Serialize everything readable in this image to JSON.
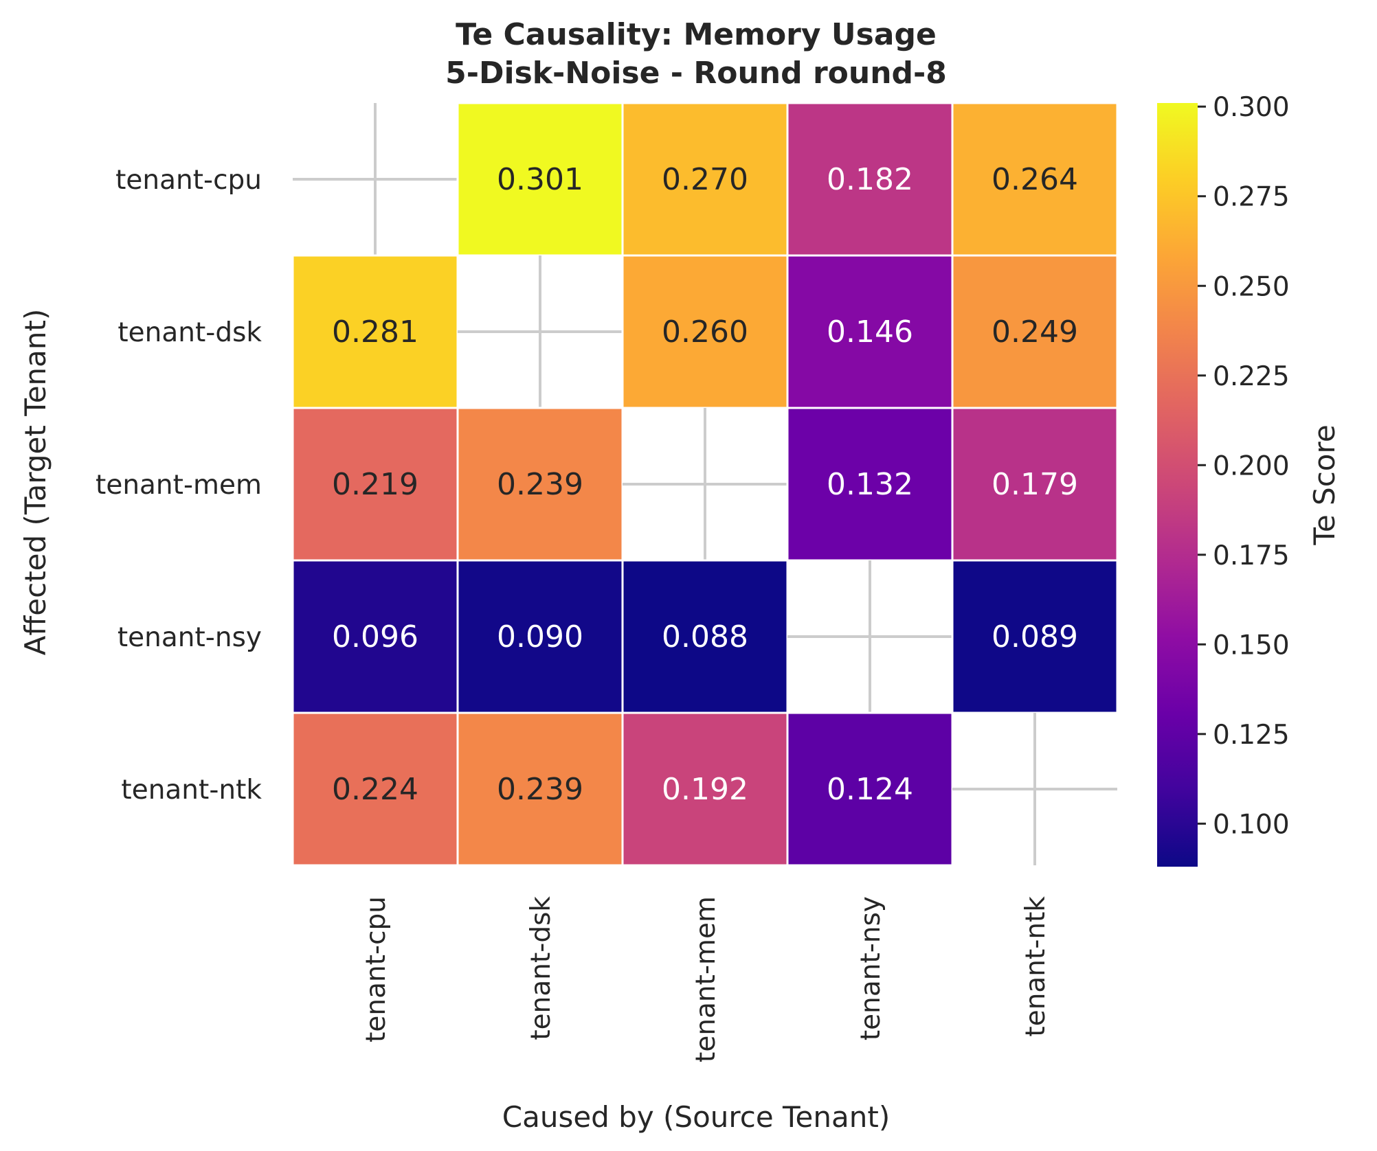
{
  "chart_data": {
    "type": "heatmap",
    "title": "Te Causality: Memory Usage",
    "subtitle": "5-Disk-Noise - Round round-8",
    "xlabel": "Caused by (Source Tenant)",
    "ylabel": "Affected (Target Tenant)",
    "x_categories": [
      "tenant-cpu",
      "tenant-dsk",
      "tenant-mem",
      "tenant-nsy",
      "tenant-ntk"
    ],
    "y_categories": [
      "tenant-cpu",
      "tenant-dsk",
      "tenant-mem",
      "tenant-nsy",
      "tenant-ntk"
    ],
    "values": [
      [
        null,
        0.301,
        0.27,
        0.182,
        0.264
      ],
      [
        0.281,
        null,
        0.26,
        0.146,
        0.249
      ],
      [
        0.219,
        0.239,
        null,
        0.132,
        0.179
      ],
      [
        0.096,
        0.09,
        0.088,
        null,
        0.089
      ],
      [
        0.224,
        0.239,
        0.192,
        0.124,
        null
      ]
    ],
    "colorbar": {
      "label": "Te Score",
      "colormap": "plasma",
      "vmin": 0.088,
      "vmax": 0.301,
      "ticks": [
        "0.100",
        "0.125",
        "0.150",
        "0.175",
        "0.200",
        "0.225",
        "0.250",
        "0.275",
        "0.300"
      ]
    },
    "grid": false,
    "diagonal_marker": "plus"
  }
}
